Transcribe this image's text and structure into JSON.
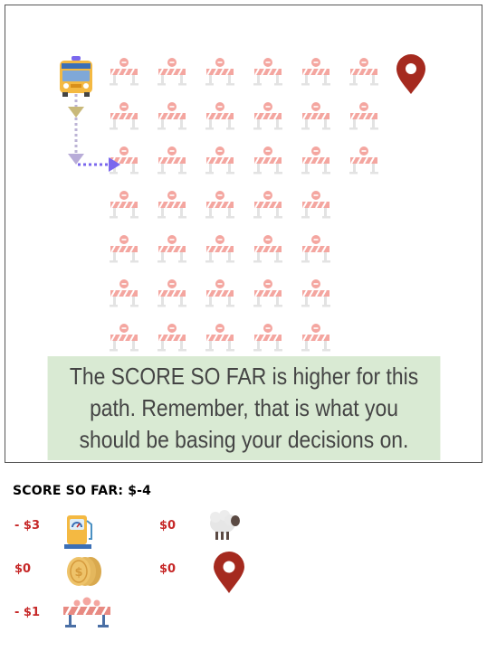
{
  "message": "The SCORE SO FAR is higher for this path. Remember, that is what you should be basing your decisions on.",
  "score": {
    "label": "SCORE SO FAR",
    "value": "$-4"
  },
  "legend": {
    "fuel": {
      "cost": "- $3",
      "icon": "fuel-pump-icon"
    },
    "sheep": {
      "cost": "$0",
      "icon": "sheep-icon"
    },
    "coins": {
      "cost": "$0",
      "icon": "coins-icon"
    },
    "destination": {
      "cost": "$0",
      "icon": "map-pin-icon"
    },
    "roadblock": {
      "cost": "- $1",
      "icon": "roadblock-icon"
    }
  },
  "colors": {
    "pin": "#a52a1f",
    "path_down": "#c9b97a",
    "path_right": "#7b68ee",
    "roadblock": "#f4a6a0",
    "message_bg": "#d9ead3"
  },
  "grid": {
    "rows": [
      6,
      6,
      6,
      5,
      5,
      5,
      5
    ],
    "path": "down then right"
  }
}
